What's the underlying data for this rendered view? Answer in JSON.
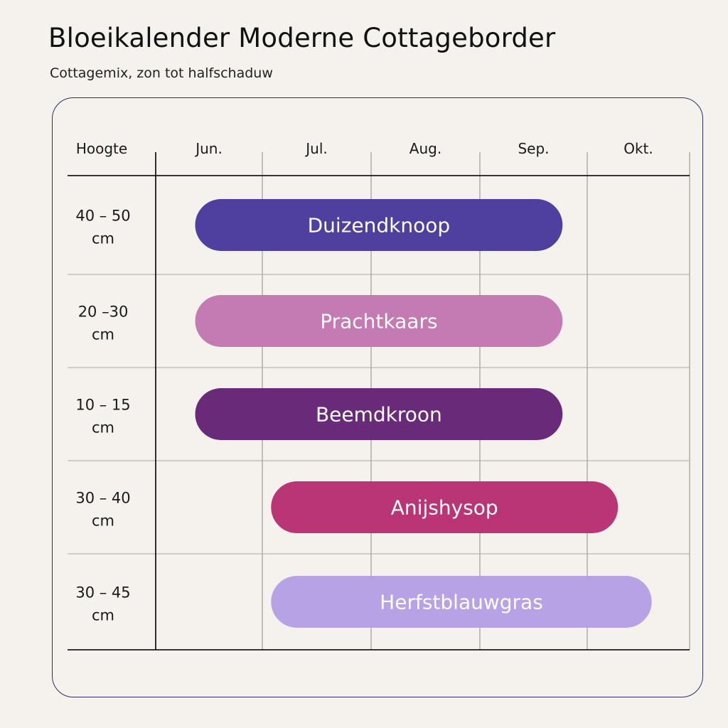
{
  "title": "Bloeikalender Moderne Cottageborder",
  "subtitle": "Cottagemix, zon tot halfschaduw",
  "chart_data": {
    "type": "bar",
    "orientation": "horizontal-timeline",
    "title": "Bloeikalender Moderne Cottageborder",
    "subtitle": "Cottagemix, zon tot halfschaduw",
    "row_header": "Hoogte",
    "categories": [
      "Jun.",
      "Jul.",
      "Aug.",
      "Sep.",
      "Okt."
    ],
    "grid": true,
    "series": [
      {
        "name": "Duizendknoop",
        "height": "40 – 50 cm",
        "start": 0.37,
        "end": 3.77,
        "color": "#4f3f9e"
      },
      {
        "name": "Prachtkaars",
        "height": "20 –30 cm",
        "start": 0.37,
        "end": 3.77,
        "color": "#c47ab3"
      },
      {
        "name": "Beemdkroon",
        "height": "10 – 15 cm",
        "start": 0.37,
        "end": 3.77,
        "color": "#6a2a7a"
      },
      {
        "name": "Anijshysop",
        "height": "30 – 40 cm",
        "start": 1.08,
        "end": 4.3,
        "color": "#b93576"
      },
      {
        "name": "Herfstblauwgras",
        "height": "30 – 45 cm",
        "start": 1.08,
        "end": 4.63,
        "color": "#b8a2e6"
      }
    ]
  }
}
